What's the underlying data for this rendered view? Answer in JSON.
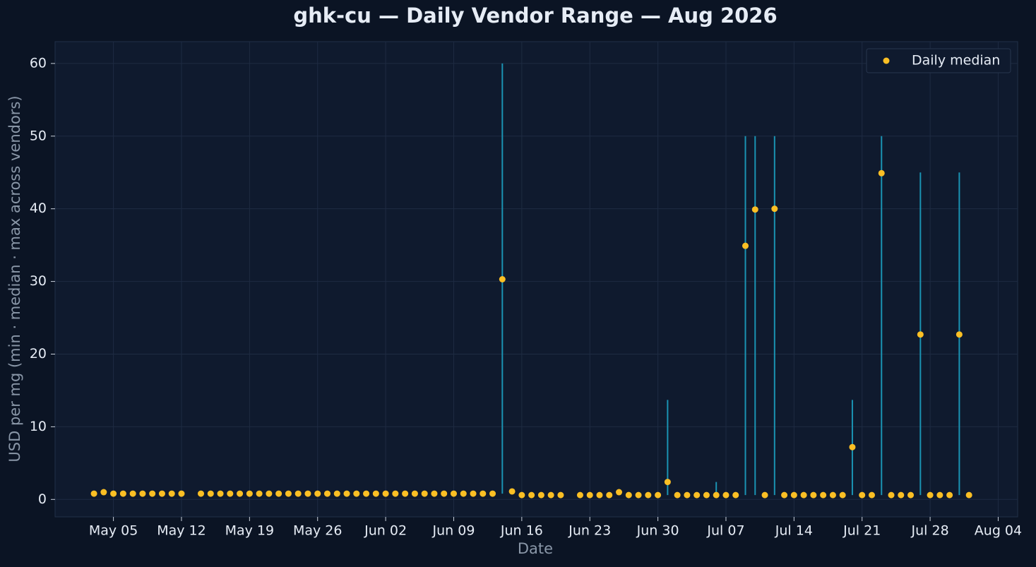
{
  "chart_data": {
    "type": "range-scatter",
    "title": "ghk-cu — Daily Vendor Range — Aug 2026",
    "x_label": "Date",
    "y_label": "USD per mg (min · median · max across vendors)",
    "x": [
      "May 03",
      "May 04",
      "May 05",
      "May 06",
      "May 07",
      "May 08",
      "May 09",
      "May 10",
      "May 11",
      "May 12",
      "May 14",
      "May 15",
      "May 16",
      "May 17",
      "May 18",
      "May 19",
      "May 20",
      "May 21",
      "May 22",
      "May 23",
      "May 24",
      "May 25",
      "May 26",
      "May 27",
      "May 28",
      "May 29",
      "May 30",
      "May 31",
      "Jun 01",
      "Jun 02",
      "Jun 03",
      "Jun 04",
      "Jun 05",
      "Jun 06",
      "Jun 07",
      "Jun 08",
      "Jun 09",
      "Jun 10",
      "Jun 11",
      "Jun 12",
      "Jun 13",
      "Jun 14",
      "Jun 15",
      "Jun 16",
      "Jun 17",
      "Jun 18",
      "Jun 19",
      "Jun 20",
      "Jun 22",
      "Jun 23",
      "Jun 24",
      "Jun 25",
      "Jun 26",
      "Jun 27",
      "Jun 28",
      "Jun 29",
      "Jun 30",
      "Jul 01",
      "Jul 02",
      "Jul 03",
      "Jul 04",
      "Jul 05",
      "Jul 06",
      "Jul 07",
      "Jul 08",
      "Jul 09",
      "Jul 10",
      "Jul 11",
      "Jul 12",
      "Jul 13",
      "Jul 14",
      "Jul 15",
      "Jul 16",
      "Jul 17",
      "Jul 18",
      "Jul 19",
      "Jul 20",
      "Jul 21",
      "Jul 22",
      "Jul 23",
      "Jul 24",
      "Jul 25",
      "Jul 26",
      "Jul 27",
      "Jul 28",
      "Jul 29",
      "Jul 30",
      "Jul 31",
      "Aug 01"
    ],
    "series": [
      {
        "name": "Daily median",
        "color": "#fbbf24",
        "values": [
          0.8,
          1.0,
          0.8,
          0.8,
          0.8,
          0.8,
          0.8,
          0.8,
          0.8,
          0.8,
          0.8,
          0.8,
          0.8,
          0.8,
          0.8,
          0.8,
          0.8,
          0.8,
          0.8,
          0.8,
          0.8,
          0.8,
          0.8,
          0.8,
          0.8,
          0.8,
          0.8,
          0.8,
          0.8,
          0.8,
          0.8,
          0.8,
          0.8,
          0.8,
          0.8,
          0.8,
          0.8,
          0.8,
          0.8,
          0.8,
          0.8,
          30.3,
          1.1,
          0.6,
          0.6,
          0.6,
          0.6,
          0.6,
          0.6,
          0.6,
          0.6,
          0.6,
          1.0,
          0.6,
          0.6,
          0.6,
          0.6,
          2.4,
          0.6,
          0.6,
          0.6,
          0.6,
          0.6,
          0.6,
          0.6,
          34.9,
          39.9,
          0.6,
          40,
          0.6,
          0.6,
          0.6,
          0.6,
          0.6,
          0.6,
          0.6,
          7.2,
          0.6,
          0.6,
          44.9,
          0.6,
          0.6,
          0.6,
          22.7,
          0.6,
          0.6,
          0.6,
          22.7,
          0.6
        ]
      }
    ],
    "range_color": "#1a93b3",
    "ranges": [
      {
        "x": "Jun 14",
        "min": 0.8,
        "max": 60
      },
      {
        "x": "Jul 01",
        "min": 0.6,
        "max": 13.7
      },
      {
        "x": "Jul 06",
        "min": 0.6,
        "max": 2.4
      },
      {
        "x": "Jul 09",
        "min": 0.6,
        "max": 50
      },
      {
        "x": "Jul 10",
        "min": 0.6,
        "max": 50
      },
      {
        "x": "Jul 12",
        "min": 0.6,
        "max": 50
      },
      {
        "x": "Jul 20",
        "min": 0.6,
        "max": 13.7
      },
      {
        "x": "Jul 23",
        "min": 0.6,
        "max": 50
      },
      {
        "x": "Jul 27",
        "min": 0.6,
        "max": 45
      },
      {
        "x": "Jul 31",
        "min": 0.6,
        "max": 45
      }
    ],
    "xlim": [
      "Apr 29",
      "Aug 06"
    ],
    "xticks": [
      "May 05",
      "May 12",
      "May 19",
      "May 26",
      "Jun 02",
      "Jun 09",
      "Jun 16",
      "Jun 23",
      "Jun 30",
      "Jul 07",
      "Jul 14",
      "Jul 21",
      "Jul 28",
      "Aug 04"
    ],
    "ylim": [
      -2.4,
      63
    ],
    "yticks": [
      0,
      10,
      20,
      30,
      40,
      50,
      60
    ],
    "grid": true,
    "legend": "upper right"
  }
}
